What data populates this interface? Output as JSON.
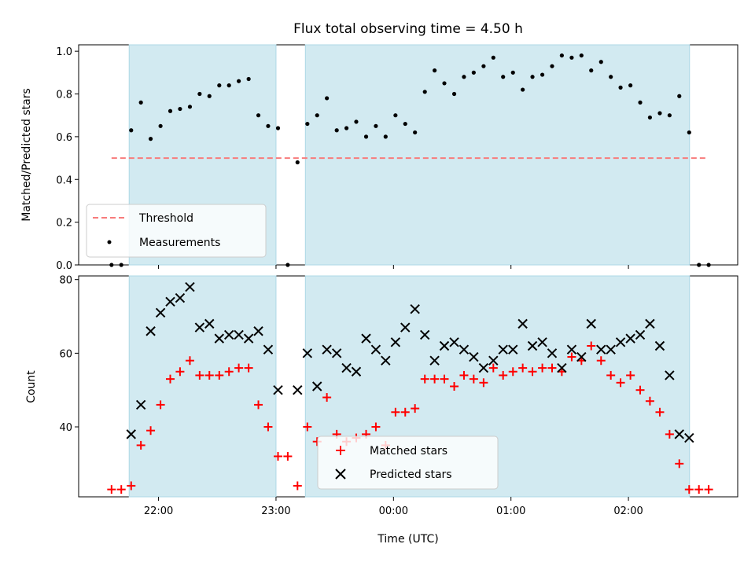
{
  "chart_data": {
    "type": "scatter",
    "title": "Flux total observing time = 4.50 h",
    "xlabel": "Time (UTC)",
    "x_tick_labels": [
      "22:00",
      "23:00",
      "00:00",
      "01:00",
      "02:00"
    ],
    "x_tick_hours": [
      22.0,
      23.0,
      24.0,
      25.0,
      26.0
    ],
    "xlim_hours": [
      21.32,
      26.93
    ],
    "shaded_intervals_hours": [
      [
        21.75,
        23.0
      ],
      [
        23.25,
        26.52
      ]
    ],
    "colors": {
      "shade": "#add8e6",
      "threshold": "#f87c7c",
      "measurements": "#000000",
      "matched": "#ff0000",
      "predicted": "#000000"
    },
    "panels": [
      {
        "id": "ratio",
        "ylabel": "Matched/Predicted stars",
        "ylim": [
          0.0,
          1.03
        ],
        "y_ticks": [
          0.0,
          0.2,
          0.4,
          0.6,
          0.8,
          1.0
        ],
        "y_tick_labels": [
          "0.0",
          "0.2",
          "0.4",
          "0.6",
          "0.8",
          "1.0"
        ],
        "threshold": {
          "name": "Threshold",
          "value": 0.5,
          "x_range_hours": [
            21.6,
            26.67
          ]
        },
        "series": [
          {
            "name": "Measurements",
            "marker": "dot",
            "x": [
              21.6,
              21.683,
              21.767,
              21.85,
              21.933,
              22.017,
              22.1,
              22.183,
              22.267,
              22.35,
              22.433,
              22.517,
              22.6,
              22.683,
              22.767,
              22.85,
              22.933,
              23.017,
              23.1,
              23.183,
              23.267,
              23.35,
              23.433,
              23.517,
              23.6,
              23.683,
              23.767,
              23.85,
              23.933,
              24.017,
              24.1,
              24.183,
              24.267,
              24.35,
              24.433,
              24.517,
              24.6,
              24.683,
              24.767,
              24.85,
              24.933,
              25.017,
              25.1,
              25.183,
              25.267,
              25.35,
              25.433,
              25.517,
              25.6,
              25.683,
              25.767,
              25.85,
              25.933,
              26.017,
              26.1,
              26.183,
              26.267,
              26.35,
              26.433,
              26.517,
              26.6,
              26.683
            ],
            "y": [
              0.0,
              0.0,
              0.63,
              0.76,
              0.59,
              0.65,
              0.72,
              0.73,
              0.74,
              0.8,
              0.79,
              0.84,
              0.84,
              0.86,
              0.87,
              0.7,
              0.65,
              0.64,
              0.0,
              0.48,
              0.66,
              0.7,
              0.78,
              0.63,
              0.64,
              0.67,
              0.6,
              0.65,
              0.6,
              0.7,
              0.66,
              0.62,
              0.81,
              0.91,
              0.85,
              0.8,
              0.88,
              0.9,
              0.93,
              0.97,
              0.88,
              0.9,
              0.82,
              0.88,
              0.89,
              0.93,
              0.98,
              0.97,
              0.98,
              0.91,
              0.95,
              0.88,
              0.83,
              0.84,
              0.76,
              0.69,
              0.71,
              0.7,
              0.79,
              0.62,
              0.0,
              0.0
            ]
          }
        ]
      },
      {
        "id": "counts",
        "ylabel": "Count",
        "ylim": [
          21.0,
          81.0
        ],
        "y_ticks": [
          40,
          60,
          80
        ],
        "y_tick_labels": [
          "40",
          "60",
          "80"
        ],
        "series": [
          {
            "name": "Matched stars",
            "marker": "plus",
            "x": [
              21.6,
              21.683,
              21.767,
              21.85,
              21.933,
              22.017,
              22.1,
              22.183,
              22.267,
              22.35,
              22.433,
              22.517,
              22.6,
              22.683,
              22.767,
              22.85,
              22.933,
              23.017,
              23.1,
              23.183,
              23.267,
              23.35,
              23.433,
              23.517,
              23.6,
              23.683,
              23.767,
              23.85,
              23.933,
              24.017,
              24.1,
              24.183,
              24.267,
              24.35,
              24.433,
              24.517,
              24.6,
              24.683,
              24.767,
              24.85,
              24.933,
              25.017,
              25.1,
              25.183,
              25.267,
              25.35,
              25.433,
              25.517,
              25.6,
              25.683,
              25.767,
              25.85,
              25.933,
              26.017,
              26.1,
              26.183,
              26.267,
              26.35,
              26.433,
              26.517,
              26.6,
              26.683
            ],
            "y": [
              23,
              23,
              24,
              35,
              39,
              46,
              53,
              55,
              58,
              54,
              54,
              54,
              55,
              56,
              56,
              46,
              40,
              32,
              32,
              24,
              40,
              36,
              48,
              38,
              36,
              37,
              38,
              40,
              35,
              44,
              44,
              45,
              53,
              53,
              53,
              51,
              54,
              53,
              52,
              56,
              54,
              55,
              56,
              55,
              56,
              56,
              55,
              59,
              58,
              62,
              58,
              54,
              52,
              54,
              50,
              47,
              44,
              38,
              30,
              23,
              23,
              23
            ]
          },
          {
            "name": "Predicted stars",
            "marker": "x",
            "x": [
              21.767,
              21.85,
              21.933,
              22.017,
              22.1,
              22.183,
              22.267,
              22.35,
              22.433,
              22.517,
              22.6,
              22.683,
              22.767,
              22.85,
              22.933,
              23.017,
              23.183,
              23.267,
              23.35,
              23.433,
              23.517,
              23.6,
              23.683,
              23.767,
              23.85,
              23.933,
              24.017,
              24.1,
              24.183,
              24.267,
              24.35,
              24.433,
              24.517,
              24.6,
              24.683,
              24.767,
              24.85,
              24.933,
              25.017,
              25.1,
              25.183,
              25.267,
              25.35,
              25.433,
              25.517,
              25.6,
              25.683,
              25.767,
              25.85,
              25.933,
              26.017,
              26.1,
              26.183,
              26.267,
              26.35,
              26.433,
              26.517
            ],
            "y": [
              38,
              46,
              66,
              71,
              74,
              75,
              78,
              67,
              68,
              64,
              65,
              65,
              64,
              66,
              61,
              50,
              50,
              60,
              51,
              61,
              60,
              56,
              55,
              64,
              61,
              58,
              63,
              67,
              72,
              65,
              58,
              62,
              63,
              61,
              59,
              56,
              58,
              61,
              61,
              68,
              62,
              63,
              60,
              56,
              61,
              59,
              68,
              61,
              61,
              63,
              64,
              65,
              68,
              62,
              54,
              38,
              37
            ]
          }
        ]
      }
    ]
  }
}
